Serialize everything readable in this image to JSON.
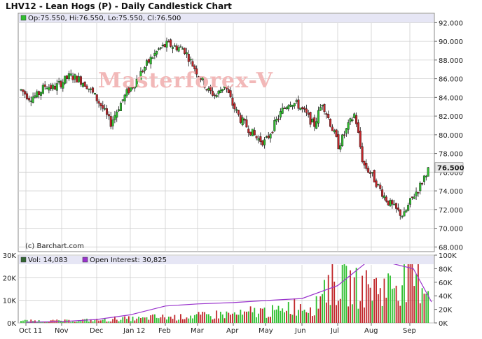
{
  "title": "LHV12 - Lean Hogs (P) - Daily Candlestick Chart",
  "watermark": "Masterforex-V",
  "credit": "(c) Barchart.com",
  "price_legend": "Op:75.550, Hi:76.550, Lo:75.550, Cl:76.500",
  "volume_legend": "Vol: 14,083",
  "oi_legend": "Open Interest: 30,825",
  "last_price_label": "76.500",
  "colors": {
    "up": "#2fbf2f",
    "down": "#c0262a",
    "oi": "#9933cc",
    "legend_bg": "#e6e6f5",
    "grid": "#d0d0d0"
  },
  "chart_data": [
    {
      "type": "candlestick",
      "title": "LHV12 - Lean Hogs (P) - Daily Candlestick Chart",
      "x_tick_labels": [
        "Oct 11",
        "Nov",
        "Dec",
        "Jan 12",
        "Feb",
        "Mar",
        "Apr",
        "May",
        "Jun",
        "Jul",
        "Aug",
        "Sep"
      ],
      "y_tick_labels": [
        "92.000",
        "90.000",
        "88.000",
        "86.000",
        "84.000",
        "82.000",
        "80.000",
        "78.000",
        "76.000",
        "74.000",
        "72.000",
        "70.000",
        "68.000"
      ],
      "ylim": [
        67.5,
        93.0
      ],
      "grid": true,
      "last": {
        "open": 75.55,
        "high": 76.55,
        "low": 75.55,
        "close": 76.5
      },
      "close_path": [
        [
          "Oct 11",
          84.8
        ],
        [
          "Oct 11",
          84.0
        ],
        [
          "Oct 11",
          84.2
        ],
        [
          "Oct 11",
          85.3
        ],
        [
          "Nov",
          85.0
        ],
        [
          "Nov",
          85.6
        ],
        [
          "Nov",
          86.3
        ],
        [
          "Nov",
          86.0
        ],
        [
          "Dec",
          85.4
        ],
        [
          "Dec",
          84.2
        ],
        [
          "Dec",
          82.9
        ],
        [
          "Dec",
          81.2
        ],
        [
          "Jan 12",
          83.0
        ],
        [
          "Jan 12",
          84.5
        ],
        [
          "Jan 12",
          85.6
        ],
        [
          "Jan 12",
          87.0
        ],
        [
          "Feb",
          88.2
        ],
        [
          "Feb",
          89.2
        ],
        [
          "Feb",
          89.7
        ],
        [
          "Feb",
          89.4
        ],
        [
          "Mar",
          89.2
        ],
        [
          "Mar",
          87.6
        ],
        [
          "Mar",
          86.2
        ],
        [
          "Mar",
          84.7
        ],
        [
          "Apr",
          84.2
        ],
        [
          "Apr",
          85.4
        ],
        [
          "Apr",
          83.2
        ],
        [
          "Apr",
          81.6
        ],
        [
          "May",
          80.6
        ],
        [
          "May",
          79.6
        ],
        [
          "May",
          79.2
        ],
        [
          "May",
          80.9
        ],
        [
          "Jun",
          82.5
        ],
        [
          "Jun",
          83.6
        ],
        [
          "Jun",
          83.2
        ],
        [
          "Jun",
          82.2
        ],
        [
          "Jul",
          81.0
        ],
        [
          "Jul",
          83.5
        ],
        [
          "Jul",
          81.2
        ],
        [
          "Jul",
          78.8
        ],
        [
          "Aug",
          80.6
        ],
        [
          "Aug",
          82.3
        ],
        [
          "Aug",
          76.9
        ],
        [
          "Aug",
          75.8
        ],
        [
          "Sep",
          74.3
        ],
        [
          "Sep",
          72.9
        ],
        [
          "Sep",
          72.0
        ],
        [
          "Sep",
          71.3
        ],
        [
          "Sep",
          73.2
        ],
        [
          "Sep",
          74.5
        ],
        [
          "Sep",
          76.5
        ]
      ]
    },
    {
      "type": "bar",
      "title": "",
      "x_tick_labels": [
        "Oct 11",
        "Nov",
        "Dec",
        "Jan 12",
        "Feb",
        "Mar",
        "Apr",
        "May",
        "Jun",
        "Jul",
        "Aug",
        "Sep"
      ],
      "y_left_tick_labels": [
        "0K",
        "10K",
        "20K",
        "30K"
      ],
      "y_right_tick_labels": [
        "0K",
        "20K",
        "40K",
        "60K",
        "80K",
        "100K"
      ],
      "volume_ylim": [
        0,
        30000
      ],
      "oi_ylim": [
        0,
        100000
      ],
      "last": {
        "volume": 14083,
        "open_interest": 30825
      },
      "volume_by_month": [
        {
          "month": "Oct 11",
          "approx_max": 1500
        },
        {
          "month": "Nov",
          "approx_max": 1500
        },
        {
          "month": "Dec",
          "approx_max": 2000
        },
        {
          "month": "Jan 12",
          "approx_max": 3000
        },
        {
          "month": "Feb",
          "approx_max": 4000
        },
        {
          "month": "Mar",
          "approx_max": 5000
        },
        {
          "month": "Apr",
          "approx_max": 6000
        },
        {
          "month": "May",
          "approx_max": 8000
        },
        {
          "month": "Jun",
          "approx_max": 12000
        },
        {
          "month": "Jul",
          "approx_max": 27000
        },
        {
          "month": "Aug",
          "approx_max": 25000
        },
        {
          "month": "Sep",
          "approx_max": 29000
        }
      ],
      "open_interest": [
        [
          "Oct 11",
          1000
        ],
        [
          "Nov",
          2000
        ],
        [
          "Dec",
          5000
        ],
        [
          "Jan 12",
          12000
        ],
        [
          "Feb",
          25000
        ],
        [
          "Mar",
          28000
        ],
        [
          "Apr",
          30000
        ],
        [
          "May",
          33000
        ],
        [
          "Jun",
          36000
        ],
        [
          "Jul",
          55000
        ],
        [
          "Aug",
          95000
        ],
        [
          "Sep",
          80000
        ],
        [
          "Sep",
          30825
        ]
      ]
    }
  ]
}
